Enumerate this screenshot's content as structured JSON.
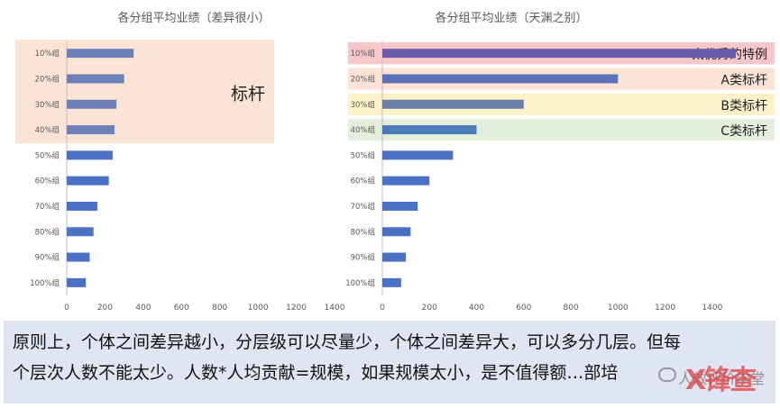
{
  "chart_data": [
    {
      "type": "bar",
      "orientation": "horizontal",
      "title": "各分组平均业绩（差异很小）",
      "categories": [
        "10%组",
        "20%组",
        "30%组",
        "40%组",
        "50%组",
        "60%组",
        "70%组",
        "80%组",
        "90%组",
        "100%组"
      ],
      "values": [
        350,
        300,
        260,
        250,
        240,
        220,
        160,
        140,
        120,
        100
      ],
      "xlim": [
        0,
        1400
      ],
      "xticks": [
        "0",
        "200",
        "400",
        "600",
        "800",
        "1000",
        "1200",
        "1400"
      ],
      "highlight": {
        "label": "标杆",
        "rows": [
          0,
          3
        ],
        "color": "#fbe3d6"
      },
      "bar_color": "#4a71c4",
      "highlight_bar_color": "#6e80b8"
    },
    {
      "type": "bar",
      "orientation": "horizontal",
      "title": "各分组平均业绩（天渊之别）",
      "categories": [
        "10%组",
        "20%组",
        "30%组",
        "40%组",
        "50%组",
        "60%组",
        "70%组",
        "80%组",
        "90%组",
        "100%组"
      ],
      "values": [
        1500,
        1000,
        600,
        400,
        300,
        200,
        150,
        120,
        100,
        80
      ],
      "xlim": [
        0,
        1500
      ],
      "xticks": [
        "0",
        "200",
        "400",
        "600",
        "800",
        "1000",
        "1200",
        "1400"
      ],
      "bands": [
        {
          "label": "太优秀的特例",
          "row": 0,
          "color": "#f7c6c9",
          "bar_color": "#6a5aaa"
        },
        {
          "label": "A类标杆",
          "row": 1,
          "color": "#fbe3d6",
          "bar_color": "#5b72b6"
        },
        {
          "label": "B类标杆",
          "row": 2,
          "color": "#fdf1c8",
          "bar_color": "#6a7fa8"
        },
        {
          "label": "C类标杆",
          "row": 3,
          "color": "#e3efda",
          "bar_color": "#4a7bb8"
        }
      ],
      "bar_color": "#4a71c4"
    }
  ],
  "caption": {
    "line1": "原则上，个体之间差异越小，分层级可以尽量少，个体之间差异大，可以多分几层。但每",
    "line2": "个层次人数不能太少。人数*人均贡献=规模，如果规模太小，是不值得额…部培"
  },
  "watermark": {
    "text": "人效评价学堂",
    "logo": "X锋查"
  }
}
